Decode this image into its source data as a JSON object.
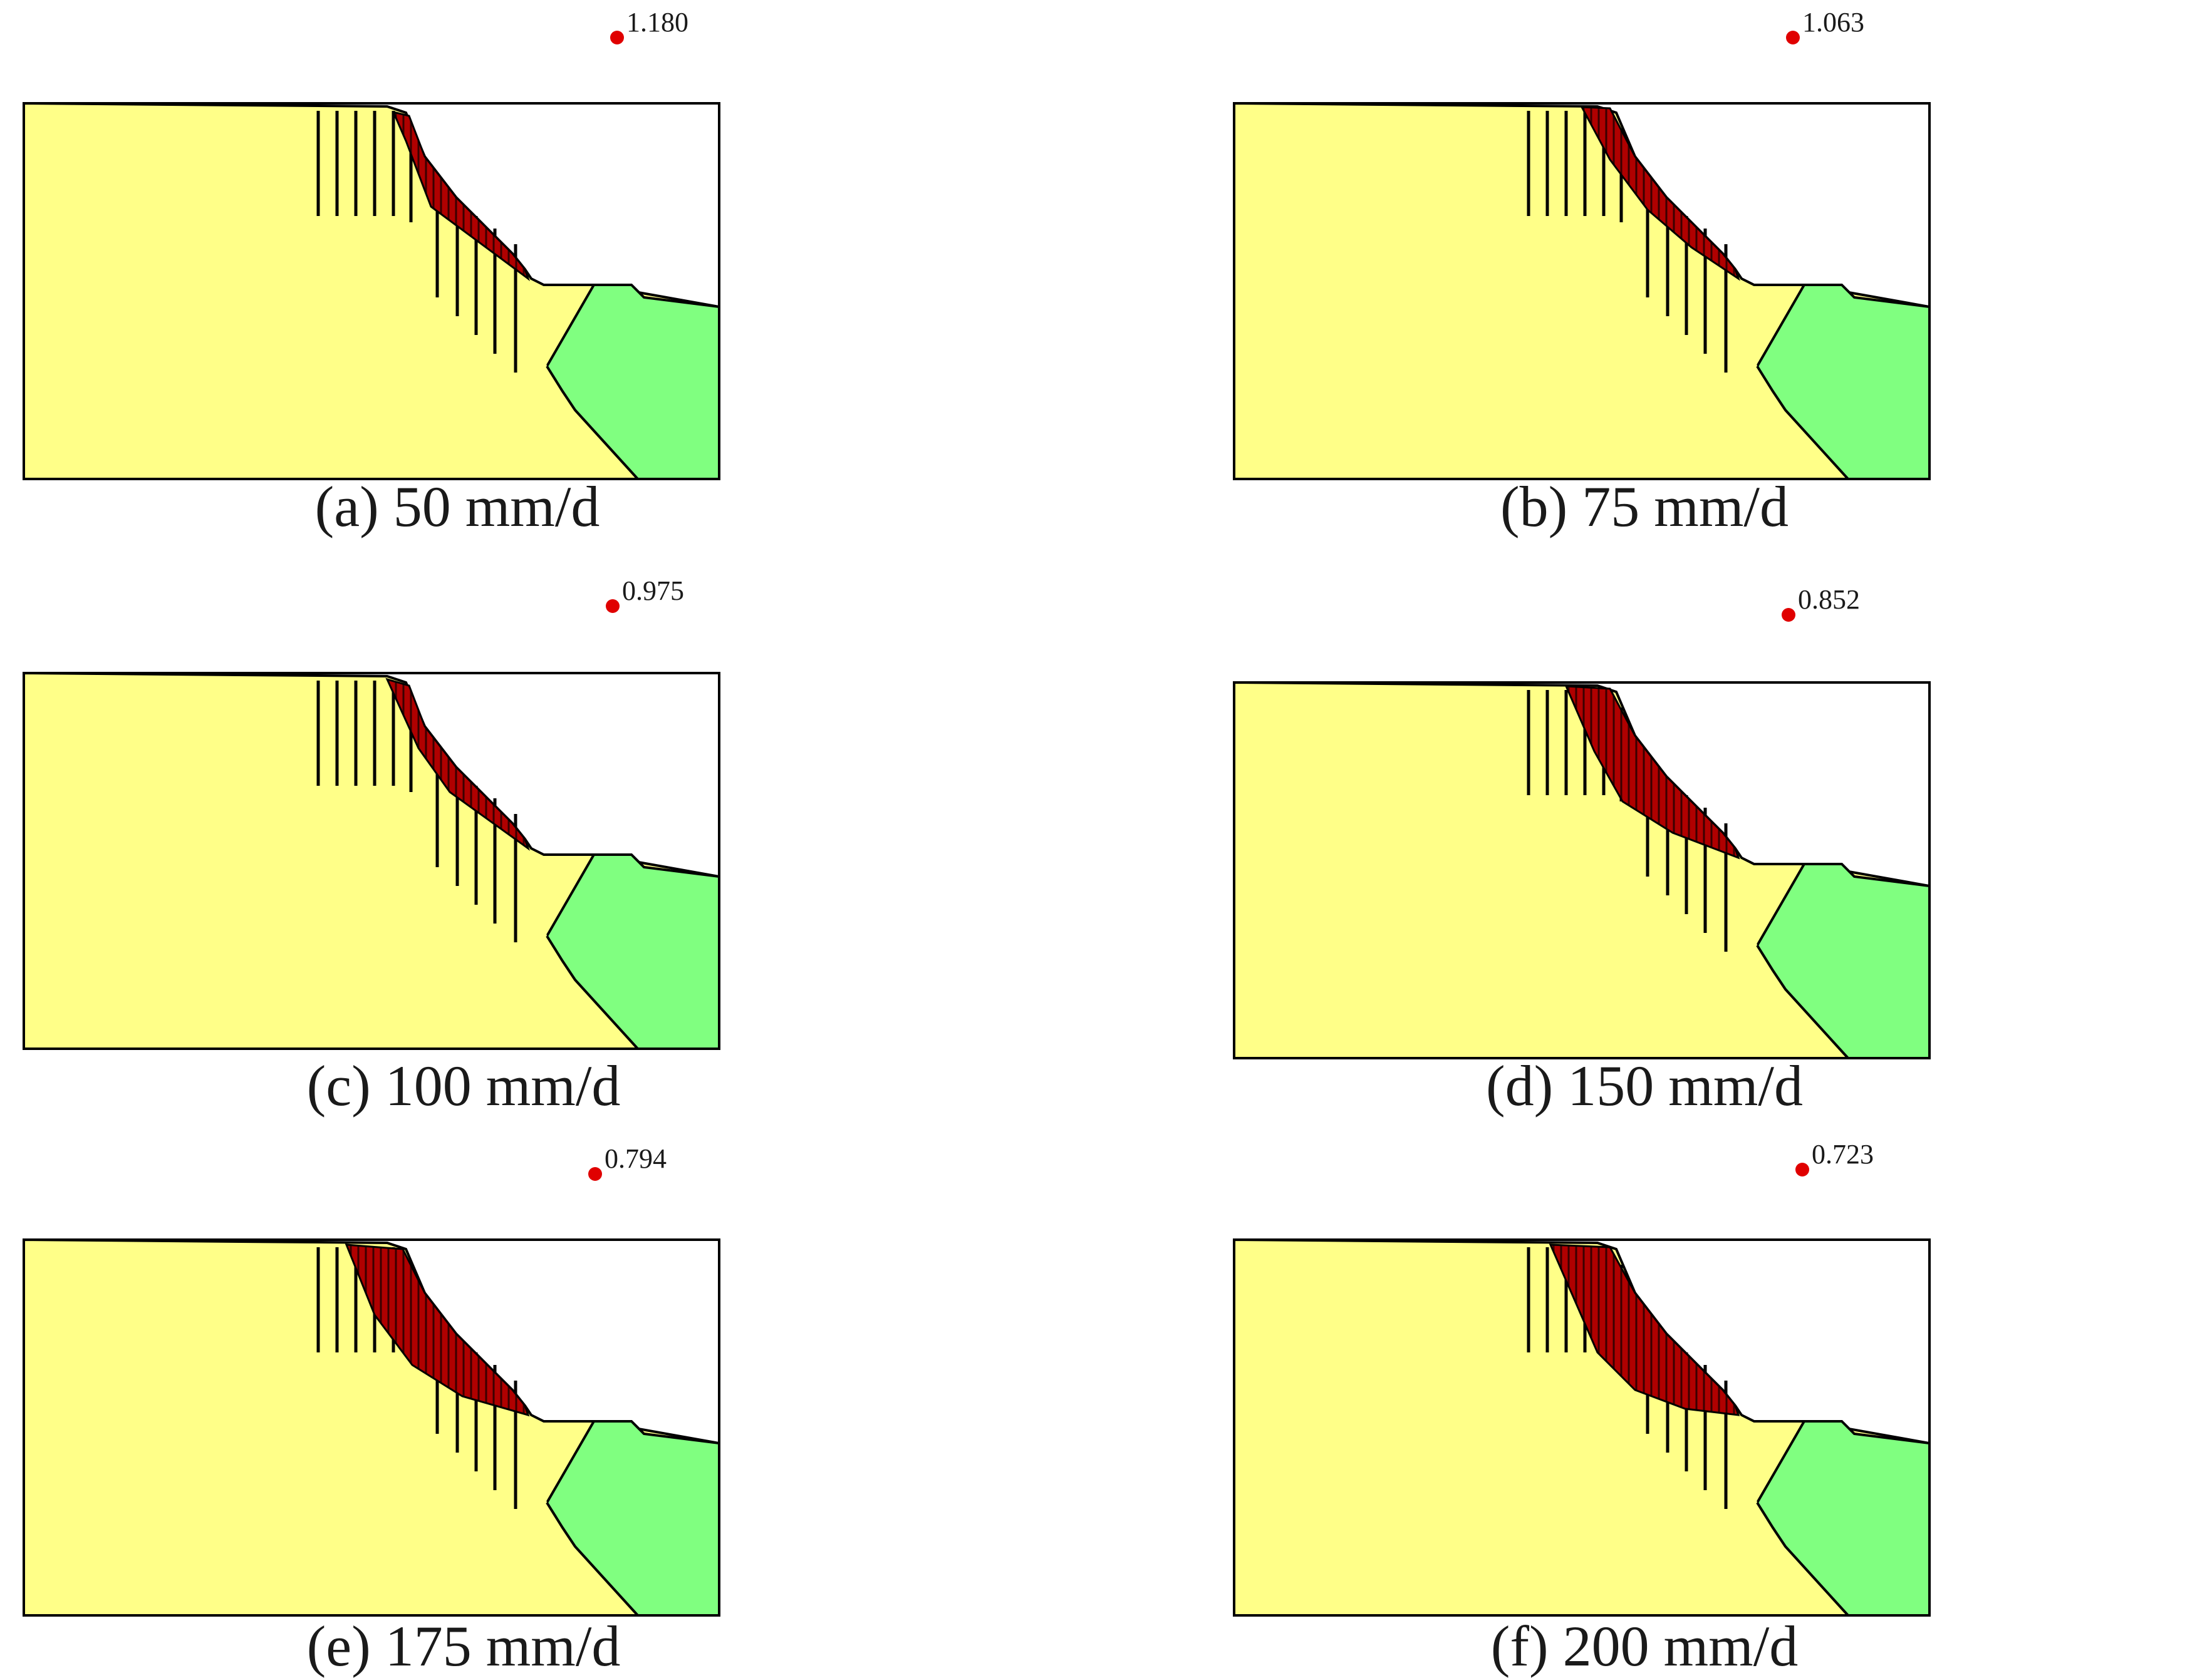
{
  "figure": {
    "colors": {
      "stable_soil": "#FFFF88",
      "toe_fill": "#80FF80",
      "sliding_mass": "#B00000",
      "outline": "#000000",
      "center_marker": "#E00000"
    },
    "panels": [
      {
        "id": "a",
        "caption": "(a) 50 mm/d",
        "safety_factor": "1.180"
      },
      {
        "id": "b",
        "caption": "(b) 75 mm/d",
        "safety_factor": "1.063"
      },
      {
        "id": "c",
        "caption": "(c) 100 mm/d",
        "safety_factor": "0.975"
      },
      {
        "id": "d",
        "caption": "(d) 150 mm/d",
        "safety_factor": "0.852"
      },
      {
        "id": "e",
        "caption": "(e) 175 mm/d",
        "safety_factor": "0.794"
      },
      {
        "id": "f",
        "caption": "(f) 200 mm/d",
        "safety_factor": "0.723"
      }
    ]
  }
}
